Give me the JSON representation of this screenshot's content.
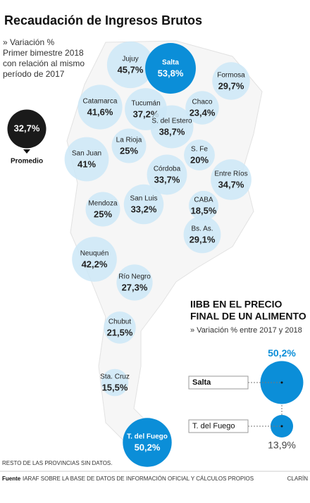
{
  "title": "Recaudación de Ingresos Brutos",
  "subtitle": [
    "» Variación %",
    "Primer bimestre 2018",
    "con relación al mismo",
    "período de 2017"
  ],
  "chart_data": [
    {
      "type": "bubble-map",
      "categories": [
        "Jujuy",
        "Salta",
        "Formosa",
        "Catamarca",
        "Tucumán",
        "Chaco",
        "S. del Estero",
        "La Rioja",
        "San Juan",
        "S. Fe",
        "Córdoba",
        "Entre Ríos",
        "Mendoza",
        "San Luis",
        "CABA",
        "Bs. As.",
        "Neuquén",
        "Río Negro",
        "Chubut",
        "Sta. Cruz",
        "T. del Fuego"
      ],
      "values": [
        45.7,
        53.8,
        29.7,
        41.6,
        37.2,
        23.4,
        38.7,
        25,
        41,
        20,
        33.7,
        34.7,
        25,
        33.2,
        18.5,
        29.1,
        42.2,
        27.3,
        21.5,
        15.5,
        50.2
      ],
      "value_labels": [
        "45,7%",
        "53,8%",
        "29,7%",
        "41,6%",
        "37,2%",
        "23,4%",
        "38,7%",
        "25%",
        "41%",
        "20%",
        "33,7%",
        "34,7%",
        "25%",
        "33,2%",
        "18,5%",
        "29,1%",
        "42,2%",
        "27,3%",
        "21,5%",
        "15,5%",
        "50,2%"
      ],
      "colors": [
        "#cde8f7",
        "#0b8ed8",
        "#cde8f7",
        "#cde8f7",
        "#cde8f7",
        "#cde8f7",
        "#cde8f7",
        "#cde8f7",
        "#cde8f7",
        "#cde8f7",
        "#cde8f7",
        "#cde8f7",
        "#cde8f7",
        "#cde8f7",
        "#cde8f7",
        "#cde8f7",
        "#cde8f7",
        "#cde8f7",
        "#cde8f7",
        "#cde8f7",
        "#0b8ed8"
      ],
      "average": {
        "value": 32.7,
        "value_label": "32,7%",
        "label": "Promedio",
        "color": "#1a1a1a"
      }
    },
    {
      "type": "bubble-inset",
      "title": [
        "IIBB EN EL PRECIO",
        "FINAL DE UN ALIMENTO"
      ],
      "subtitle": "» Variación % entre 2017 y 2018",
      "categories": [
        "Salta",
        "T. del Fuego"
      ],
      "values": [
        50.2,
        13.9
      ],
      "value_labels": [
        "50,2%",
        "13,9%"
      ],
      "color": "#0b8ed8"
    }
  ],
  "note": "RESTO DE LAS PROVINCIAS SIN DATOS.",
  "footer": {
    "source_label": "Fuente",
    "source": "IARAF SOBRE LA BASE DE DATOS DE INFORMACIÓN OFICIAL Y CÁLCULOS PROPIOS",
    "brand": "CLARÍN"
  }
}
